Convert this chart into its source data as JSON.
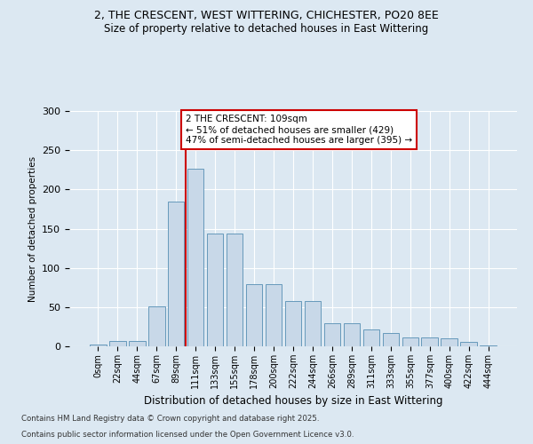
{
  "title1": "2, THE CRESCENT, WEST WITTERING, CHICHESTER, PO20 8EE",
  "title2": "Size of property relative to detached houses in East Wittering",
  "xlabel": "Distribution of detached houses by size in East Wittering",
  "ylabel": "Number of detached properties",
  "bin_labels": [
    "0sqm",
    "22sqm",
    "44sqm",
    "67sqm",
    "89sqm",
    "111sqm",
    "133sqm",
    "155sqm",
    "178sqm",
    "200sqm",
    "222sqm",
    "244sqm",
    "266sqm",
    "289sqm",
    "311sqm",
    "333sqm",
    "355sqm",
    "377sqm",
    "400sqm",
    "422sqm",
    "444sqm"
  ],
  "values": [
    2,
    7,
    7,
    51,
    184,
    226,
    144,
    144,
    79,
    79,
    58,
    58,
    29,
    29,
    22,
    17,
    11,
    11,
    10,
    6,
    1
  ],
  "bar_color": "#c8d8e8",
  "bar_edge_color": "#6699bb",
  "vline_index": 5,
  "vline_color": "#cc0000",
  "annotation_text": "2 THE CRESCENT: 109sqm\n← 51% of detached houses are smaller (429)\n47% of semi-detached houses are larger (395) →",
  "annotation_box_facecolor": "#ffffff",
  "annotation_box_edgecolor": "#cc0000",
  "ylim": [
    0,
    300
  ],
  "yticks": [
    0,
    50,
    100,
    150,
    200,
    250,
    300
  ],
  "footer1": "Contains HM Land Registry data © Crown copyright and database right 2025.",
  "footer2": "Contains public sector information licensed under the Open Government Licence v3.0.",
  "bg_color": "#dce8f2",
  "grid_color": "#ffffff"
}
